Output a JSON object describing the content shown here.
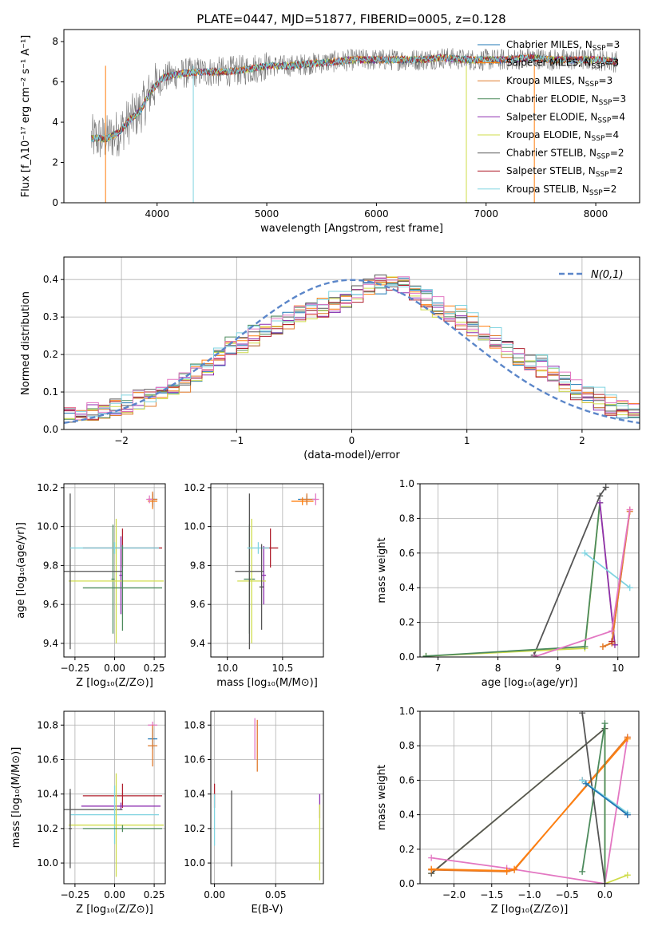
{
  "figure": {
    "title": "PLATE=0447, MJD=51877, FIBERID=0005, z=0.128"
  },
  "colors": {
    "Chabrier MILES": "#1f77b4",
    "Salpeter MILES": "#ff7f0e",
    "Kroupa MILES": "#e07b2e",
    "Chabrier ELODIE": "#4c8a5c",
    "Salpeter ELODIE": "#8e2fb0",
    "Kroupa ELODIE": "#cfdc4a",
    "Chabrier STELIB": "#555555",
    "Salpeter STELIB": "#b0202e",
    "Kroupa STELIB": "#7fd3e0",
    "Normal": "#5b86c9",
    "pink": "#e377c2",
    "grid": "#b0b0b0"
  },
  "chart_data": [
    {
      "id": "spectrum",
      "type": "line",
      "title": "PLATE=0447, MJD=51877, FIBERID=0005, z=0.128",
      "xlabel": "wavelength [Angstrom, rest frame]",
      "ylabel": "Flux [f_λ10⁻¹⁷ erg cm⁻² s⁻¹ A⁻¹]",
      "xlim": [
        3150,
        8400
      ],
      "ylim": [
        0,
        8.6
      ],
      "xticks": [
        4000,
        5000,
        6000,
        7000,
        8000
      ],
      "yticks": [
        0,
        2,
        4,
        6,
        8
      ],
      "grid": false,
      "legend_position": "top-right",
      "legend": [
        {
          "label": "Chabrier MILES, N",
          "sub": "SSP",
          "tail": "=3"
        },
        {
          "label": "Salpeter MILES, N",
          "sub": "SSP",
          "tail": "=3"
        },
        {
          "label": "Kroupa MILES, N",
          "sub": "SSP",
          "tail": "=3"
        },
        {
          "label": "Chabrier ELODIE, N",
          "sub": "SSP",
          "tail": "=3"
        },
        {
          "label": "Salpeter ELODIE, N",
          "sub": "SSP",
          "tail": "=4"
        },
        {
          "label": "Kroupa ELODIE, N",
          "sub": "SSP",
          "tail": "=4"
        },
        {
          "label": "Chabrier STELIB, N",
          "sub": "SSP",
          "tail": "=2"
        },
        {
          "label": "Salpeter STELIB, N",
          "sub": "SSP",
          "tail": "=2"
        },
        {
          "label": "Kroupa STELIB, N",
          "sub": "SSP",
          "tail": "=2"
        }
      ],
      "model_trend": {
        "x": [
          3400,
          3550,
          3650,
          3750,
          3850,
          3950,
          4050,
          4200,
          4400,
          4600,
          4800,
          5000,
          5200,
          5400,
          5600,
          5800,
          6000,
          6200,
          6400,
          6600,
          6800,
          7000,
          7200,
          7400,
          7600,
          7800,
          8000,
          8200
        ],
        "y": [
          3.2,
          3.2,
          3.5,
          4.1,
          4.6,
          5.6,
          6.2,
          6.4,
          6.5,
          6.5,
          6.6,
          6.8,
          6.8,
          6.9,
          7.0,
          7.1,
          7.1,
          7.1,
          7.1,
          7.2,
          7.1,
          7.1,
          7.1,
          7.2,
          7.1,
          7.1,
          7.1,
          7.0
        ]
      },
      "data_noise_amplitude": 0.55
    },
    {
      "id": "residual-hist",
      "type": "histogram",
      "xlabel": "(data-model)/error",
      "ylabel": "Normed distribution",
      "xlim": [
        -2.5,
        2.5
      ],
      "ylim": [
        0,
        0.46
      ],
      "xticks": [
        -2,
        -1,
        0,
        1,
        2
      ],
      "xticklabels": [
        "−2",
        "−1",
        "0",
        "1",
        "2"
      ],
      "yticks": [
        0.0,
        0.1,
        0.2,
        0.3,
        0.4
      ],
      "grid": true,
      "legend_position": "top-right",
      "legend": [
        {
          "label": "N(0,1)"
        }
      ],
      "bin_width": 0.1,
      "bins_start": -2.5,
      "reference_curve": "standard normal",
      "histogram_base": [
        0.04,
        0.04,
        0.05,
        0.05,
        0.06,
        0.07,
        0.08,
        0.09,
        0.1,
        0.11,
        0.13,
        0.15,
        0.17,
        0.2,
        0.22,
        0.23,
        0.25,
        0.27,
        0.28,
        0.3,
        0.31,
        0.32,
        0.33,
        0.34,
        0.35,
        0.37,
        0.38,
        0.39,
        0.4,
        0.39,
        0.37,
        0.35,
        0.33,
        0.31,
        0.3,
        0.28,
        0.26,
        0.24,
        0.22,
        0.2,
        0.18,
        0.17,
        0.15,
        0.13,
        0.11,
        0.09,
        0.08,
        0.07,
        0.06,
        0.05
      ]
    },
    {
      "id": "z-age",
      "type": "errorbar",
      "xlabel": "Z [log₁₀(Z/Z⊙)]",
      "ylabel": "age  [log₁₀(age/yr)]",
      "xlim": [
        -0.32,
        0.32
      ],
      "ylim": [
        9.33,
        10.22
      ],
      "xticks": [
        -0.25,
        0.0,
        0.25
      ],
      "xticklabels": [
        "−0.25",
        "0.00",
        "0.25"
      ],
      "yticks": [
        9.4,
        9.6,
        9.8,
        10.0,
        10.2
      ],
      "grid": true,
      "points": [
        {
          "model": "Chabrier MILES",
          "x": 0.24,
          "xerr": 0.03,
          "y": 10.14,
          "yerr": 0.03
        },
        {
          "model": "Salpeter MILES",
          "x": 0.24,
          "xerr": 0.03,
          "y": 10.13,
          "yerr": 0.04
        },
        {
          "model": "Kroupa MILES",
          "x": 0.24,
          "xerr": 0.03,
          "y": 10.14,
          "yerr": 0.04
        },
        {
          "model": "Chabrier ELODIE",
          "x": -0.01,
          "xerr": 0.01,
          "y": 9.73,
          "yerr": 0.28
        },
        {
          "model": "Salpeter ELODIE",
          "x": 0.04,
          "xerr": 0.01,
          "y": 9.75,
          "yerr": 0.2
        },
        {
          "model": "Kroupa ELODIE",
          "x": 0.01,
          "xerr": 0.3,
          "y": 9.72,
          "yerr": 0.32
        },
        {
          "model": "Chabrier STELIB",
          "x": -0.28,
          "xerr": 0.33,
          "y": 9.77,
          "yerr": 0.4
        },
        {
          "model": "Salpeter STELIB",
          "x": 0.05,
          "xerr": 0.25,
          "y": 9.89,
          "yerr": 0.1
        },
        {
          "model": "Kroupa STELIB",
          "x": 0.0,
          "xerr": 0.28,
          "y": 9.89,
          "yerr": 0.03
        },
        {
          "model": "Chabrier ELODIE",
          "x": 0.05,
          "xerr": 0.25,
          "y": 9.685,
          "yerr": 0.22
        },
        {
          "model": "pink",
          "x": 0.22,
          "xerr": 0.02,
          "y": 10.14,
          "yerr": 0.02
        }
      ]
    },
    {
      "id": "mass-age",
      "type": "errorbar",
      "xlabel": "mass [log₁₀(M/M⊙)]",
      "ylabel": "",
      "xlim": [
        9.85,
        10.87
      ],
      "ylim": [
        9.33,
        10.22
      ],
      "xticks": [
        10.0,
        10.5
      ],
      "xticklabels": [
        "10.0",
        "10.5"
      ],
      "yticks": [
        9.4,
        9.6,
        9.8,
        10.0,
        10.2
      ],
      "grid": true,
      "points": [
        {
          "model": "Chabrier MILES",
          "x": 10.72,
          "xerr": 0.08,
          "y": 10.14,
          "yerr": 0.02
        },
        {
          "model": "Salpeter MILES",
          "x": 10.68,
          "xerr": 0.1,
          "y": 10.13,
          "yerr": 0.02
        },
        {
          "model": "Kroupa MILES",
          "x": 10.72,
          "xerr": 0.06,
          "y": 10.14,
          "yerr": 0.03
        },
        {
          "model": "pink",
          "x": 10.8,
          "xerr": 0.03,
          "y": 10.14,
          "yerr": 0.03
        },
        {
          "model": "Chabrier ELODIE",
          "x": 10.2,
          "xerr": 0.05,
          "y": 9.73,
          "yerr": 0.28
        },
        {
          "model": "Salpeter ELODIE",
          "x": 10.33,
          "xerr": 0.02,
          "y": 9.75,
          "yerr": 0.15
        },
        {
          "model": "Kroupa ELODIE",
          "x": 10.22,
          "xerr": 0.13,
          "y": 9.72,
          "yerr": 0.32
        },
        {
          "model": "Chabrier STELIB",
          "x": 10.2,
          "xerr": 0.13,
          "y": 9.77,
          "yerr": 0.4
        },
        {
          "model": "Salpeter STELIB",
          "x": 10.39,
          "xerr": 0.07,
          "y": 9.89,
          "yerr": 0.1
        },
        {
          "model": "Kroupa STELIB",
          "x": 10.28,
          "xerr": 0.1,
          "y": 9.89,
          "yerr": 0.03
        },
        {
          "model": "Chabrier STELIB",
          "x": 10.31,
          "xerr": 0.02,
          "y": 9.69,
          "yerr": 0.22
        }
      ]
    },
    {
      "id": "age-weight",
      "type": "line",
      "xlabel": "age  [log₁₀(age/yr)]",
      "ylabel": "mass weight",
      "xlim": [
        6.7,
        10.35
      ],
      "ylim": [
        0,
        1.0
      ],
      "xticks": [
        7,
        8,
        9,
        10
      ],
      "yticks": [
        0.0,
        0.2,
        0.4,
        0.6,
        0.8,
        1.0
      ],
      "grid": true,
      "series": [
        {
          "model": "Chabrier STELIB",
          "x": [
            8.6,
            9.7,
            9.8
          ],
          "y": [
            0.01,
            0.93,
            0.98
          ]
        },
        {
          "model": "Kroupa ELODIE",
          "x": [
            6.8,
            9.45,
            9.7,
            9.95
          ],
          "y": [
            0.005,
            0.05,
            0.89,
            0.07
          ]
        },
        {
          "model": "Chabrier ELODIE",
          "x": [
            6.8,
            9.45,
            9.7
          ],
          "y": [
            0.005,
            0.06,
            0.89
          ]
        },
        {
          "model": "Salpeter ELODIE",
          "x": [
            9.7,
            9.95
          ],
          "y": [
            0.89,
            0.07
          ]
        },
        {
          "model": "Kroupa STELIB",
          "x": [
            9.45,
            10.2
          ],
          "y": [
            0.6,
            0.4
          ]
        },
        {
          "model": "Salpeter MILES",
          "x": [
            9.75,
            9.9,
            10.2
          ],
          "y": [
            0.06,
            0.08,
            0.85
          ]
        },
        {
          "model": "Kroupa MILES",
          "x": [
            9.75,
            9.9,
            10.2
          ],
          "y": [
            0.06,
            0.08,
            0.84
          ]
        },
        {
          "model": "pink",
          "x": [
            8.6,
            9.9,
            10.2
          ],
          "y": [
            0.0,
            0.15,
            0.85
          ]
        },
        {
          "model": "Salpeter STELIB",
          "x": [
            9.9
          ],
          "y": [
            0.09
          ]
        }
      ]
    },
    {
      "id": "z-mass",
      "type": "errorbar",
      "xlabel": "Z [log₁₀(Z/Z⊙)]",
      "ylabel": "mass [log₁₀(M/M⊙)]",
      "xlim": [
        -0.32,
        0.32
      ],
      "ylim": [
        9.88,
        10.88
      ],
      "xticks": [
        -0.25,
        0.0,
        0.25
      ],
      "xticklabels": [
        "−0.25",
        "0.00",
        "0.25"
      ],
      "yticks": [
        10.0,
        10.2,
        10.4,
        10.6,
        10.8
      ],
      "grid": true,
      "points": [
        {
          "model": "pink",
          "x": 0.24,
          "xerr": 0.03,
          "y": 10.8,
          "yerr": 0.02
        },
        {
          "model": "Chabrier MILES",
          "x": 0.24,
          "xerr": 0.03,
          "y": 10.72,
          "yerr": 0.06
        },
        {
          "model": "Kroupa MILES",
          "x": 0.24,
          "xerr": 0.03,
          "y": 10.68,
          "yerr": 0.12
        },
        {
          "model": "Salpeter STELIB",
          "x": 0.05,
          "xerr": 0.25,
          "y": 10.39,
          "yerr": 0.07
        },
        {
          "model": "Salpeter ELODIE",
          "x": 0.04,
          "xerr": 0.25,
          "y": 10.33,
          "yerr": 0.02
        },
        {
          "model": "Chabrier STELIB",
          "x": -0.28,
          "xerr": 0.33,
          "y": 10.31,
          "yerr": 0.1
        },
        {
          "model": "Kroupa STELIB",
          "x": 0.0,
          "xerr": 0.28,
          "y": 10.28,
          "yerr": 0.17
        },
        {
          "model": "Kroupa ELODIE",
          "x": 0.01,
          "xerr": 0.3,
          "y": 10.22,
          "yerr": 0.3
        },
        {
          "model": "Chabrier ELODIE",
          "x": 0.05,
          "xerr": 0.25,
          "y": 10.2,
          "yerr": 0.02
        },
        {
          "model": "Chabrier STELIB",
          "x": -0.28,
          "xerr": 0.01,
          "y": 10.2,
          "yerr": 0.23
        }
      ]
    },
    {
      "id": "ebv-mass",
      "type": "errorbar",
      "xlabel": "E(B-V)",
      "ylabel": "",
      "xlim": [
        -0.003,
        0.089
      ],
      "ylim": [
        9.88,
        10.88
      ],
      "xticks": [
        0.0,
        0.05
      ],
      "xticklabels": [
        "0.00",
        "0.05"
      ],
      "yticks": [
        10.0,
        10.2,
        10.4,
        10.6,
        10.8
      ],
      "grid": true,
      "points": [
        {
          "model": "pink",
          "x": 0.033,
          "xerr": 0,
          "y": 10.72,
          "yerr": 0.12
        },
        {
          "model": "Kroupa MILES",
          "x": 0.035,
          "xerr": 0,
          "y": 10.68,
          "yerr": 0.15
        },
        {
          "model": "Salpeter STELIB",
          "x": 0.0,
          "xerr": 0,
          "y": 10.39,
          "yerr": 0.07
        },
        {
          "model": "Kroupa STELIB",
          "x": 0.0,
          "xerr": 0,
          "y": 10.25,
          "yerr": 0.15
        },
        {
          "model": "Chabrier STELIB",
          "x": 0.014,
          "xerr": 0,
          "y": 10.2,
          "yerr": 0.22
        },
        {
          "model": "Salpeter ELODIE",
          "x": 0.086,
          "xerr": 0,
          "y": 10.33,
          "yerr": 0.07
        },
        {
          "model": "Kroupa ELODIE",
          "x": 0.086,
          "xerr": 0,
          "y": 10.12,
          "yerr": 0.22
        }
      ]
    },
    {
      "id": "z-weight",
      "type": "line",
      "xlabel": "Z [log₁₀(Z/Z⊙)]",
      "ylabel": "mass weight",
      "xlim": [
        -2.45,
        0.45
      ],
      "ylim": [
        0,
        1.0
      ],
      "xticks": [
        -2.0,
        -1.5,
        -1.0,
        -0.5,
        0.0
      ],
      "xticklabels": [
        "−2.0",
        "−1.5",
        "−1.0",
        "−0.5",
        "0.0"
      ],
      "yticks": [
        0.0,
        0.2,
        0.4,
        0.6,
        0.8,
        1.0
      ],
      "grid": true,
      "series": [
        {
          "model": "Kroupa ELODIE",
          "x": [
            -2.3,
            0.0,
            0.0,
            0.3
          ],
          "y": [
            0.06,
            0.9,
            0.0,
            0.05
          ]
        },
        {
          "model": "Chabrier STELIB",
          "x": [
            -2.3,
            0.0
          ],
          "y": [
            0.06,
            0.9
          ]
        },
        {
          "model": "pink",
          "x": [
            -2.3,
            -1.3,
            0.0,
            0.3
          ],
          "y": [
            0.15,
            0.09,
            0.0,
            0.85
          ]
        },
        {
          "model": "Kroupa MILES",
          "x": [
            -2.3,
            -1.3,
            -1.2,
            0.3
          ],
          "y": [
            0.08,
            0.07,
            0.08,
            0.85
          ]
        },
        {
          "model": "Salpeter MILES",
          "x": [
            -2.3,
            -1.3,
            -1.2,
            0.3
          ],
          "y": [
            0.085,
            0.075,
            0.085,
            0.84
          ]
        },
        {
          "model": "Chabrier ELODIE",
          "x": [
            -0.3,
            0.0,
            0.0
          ],
          "y": [
            0.07,
            0.93,
            0.0
          ]
        },
        {
          "model": "Chabrier STELIB",
          "x": [
            -0.3,
            0.0
          ],
          "y": [
            0.99,
            0.0
          ]
        },
        {
          "model": "Salpeter STELIB",
          "x": [
            -0.3,
            0.3
          ],
          "y": [
            0.6,
            0.4
          ]
        },
        {
          "model": "Kroupa STELIB",
          "x": [
            -0.3,
            0.3
          ],
          "y": [
            0.6,
            0.41
          ]
        },
        {
          "model": "Chabrier MILES",
          "x": [
            -0.25,
            0.3
          ],
          "y": [
            0.58,
            0.4
          ]
        }
      ]
    }
  ]
}
